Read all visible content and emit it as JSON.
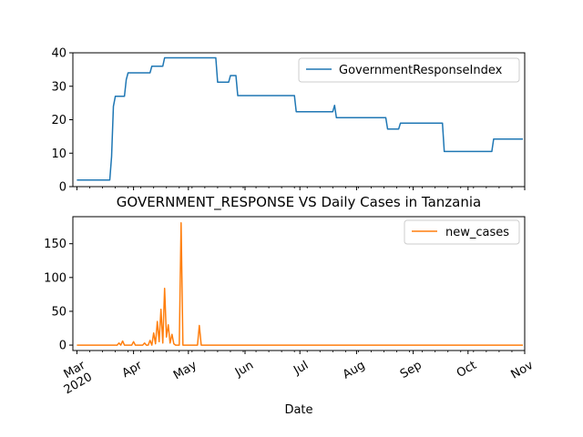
{
  "chart_data": [
    {
      "type": "line",
      "xlabel": "",
      "ylabel": "",
      "ylim": [
        0,
        40
      ],
      "yticks": [
        "0",
        "10",
        "20",
        "30",
        "40"
      ],
      "legend_position": "upper-right",
      "series": [
        {
          "name": "GovernmentResponseIndex",
          "color": "#1f77b4",
          "points": [
            [
              "2020-03-01",
              2
            ],
            [
              "2020-03-19",
              2
            ],
            [
              "2020-03-20",
              9
            ],
            [
              "2020-03-21",
              24
            ],
            [
              "2020-03-22",
              27
            ],
            [
              "2020-03-27",
              27
            ],
            [
              "2020-03-28",
              32
            ],
            [
              "2020-03-29",
              34
            ],
            [
              "2020-04-10",
              34
            ],
            [
              "2020-04-11",
              36
            ],
            [
              "2020-04-17",
              36
            ],
            [
              "2020-04-18",
              38.5
            ],
            [
              "2020-05-16",
              38.5
            ],
            [
              "2020-05-17",
              31.2
            ],
            [
              "2020-05-23",
              31.2
            ],
            [
              "2020-05-24",
              33.2
            ],
            [
              "2020-05-27",
              33.2
            ],
            [
              "2020-05-28",
              27.2
            ],
            [
              "2020-06-28",
              27.2
            ],
            [
              "2020-06-29",
              22.4
            ],
            [
              "2020-07-19",
              22.4
            ],
            [
              "2020-07-20",
              24.3
            ],
            [
              "2020-07-21",
              20.6
            ],
            [
              "2020-08-17",
              20.6
            ],
            [
              "2020-08-18",
              17.2
            ],
            [
              "2020-08-24",
              17.2
            ],
            [
              "2020-08-25",
              19
            ],
            [
              "2020-09-17",
              19
            ],
            [
              "2020-09-18",
              10.5
            ],
            [
              "2020-10-14",
              10.5
            ],
            [
              "2020-10-15",
              14.2
            ],
            [
              "2020-10-31",
              14.2
            ]
          ]
        }
      ]
    },
    {
      "type": "line",
      "title": "GOVERNMENT_RESPONSE VS Daily Cases in Tanzania",
      "xlabel": "Date",
      "ylabel": "",
      "ylim": [
        -8,
        190
      ],
      "yticks": [
        "0",
        "50",
        "100",
        "150"
      ],
      "xticks": [
        "Mar\n2020",
        "Apr",
        "May",
        "Jun",
        "Jul",
        "Aug",
        "Sep",
        "Oct",
        "Nov"
      ],
      "legend_position": "upper-right",
      "series": [
        {
          "name": "new_cases",
          "color": "#ff7f0e",
          "points": [
            [
              "2020-03-01",
              0
            ],
            [
              "2020-03-23",
              0
            ],
            [
              "2020-03-24",
              3
            ],
            [
              "2020-03-25",
              0
            ],
            [
              "2020-03-26",
              6
            ],
            [
              "2020-03-27",
              0
            ],
            [
              "2020-03-31",
              0
            ],
            [
              "2020-04-01",
              5
            ],
            [
              "2020-04-02",
              0
            ],
            [
              "2020-04-06",
              0
            ],
            [
              "2020-04-07",
              3
            ],
            [
              "2020-04-08",
              0
            ],
            [
              "2020-04-09",
              0
            ],
            [
              "2020-04-10",
              7
            ],
            [
              "2020-04-11",
              0
            ],
            [
              "2020-04-12",
              18
            ],
            [
              "2020-04-13",
              2
            ],
            [
              "2020-04-14",
              35
            ],
            [
              "2020-04-15",
              5
            ],
            [
              "2020-04-16",
              53
            ],
            [
              "2020-04-17",
              3
            ],
            [
              "2020-04-18",
              84
            ],
            [
              "2020-04-19",
              12
            ],
            [
              "2020-04-20",
              30
            ],
            [
              "2020-04-21",
              3
            ],
            [
              "2020-04-22",
              16
            ],
            [
              "2020-04-23",
              2
            ],
            [
              "2020-04-24",
              0
            ],
            [
              "2020-04-26",
              0
            ],
            [
              "2020-04-27",
              181
            ],
            [
              "2020-04-28",
              0
            ],
            [
              "2020-05-06",
              0
            ],
            [
              "2020-05-07",
              29
            ],
            [
              "2020-05-08",
              0
            ],
            [
              "2020-10-31",
              0
            ]
          ]
        }
      ]
    }
  ]
}
